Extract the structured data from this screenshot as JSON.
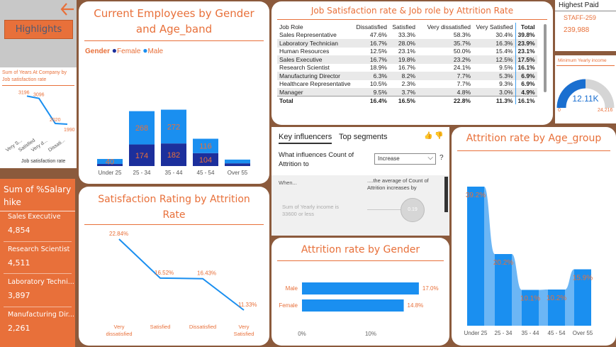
{
  "nav": {
    "back_icon": "arrow-left-icon",
    "highlights_label": "Highlights"
  },
  "years_chart": {
    "title": "Sum of Years At Company by Job satisfaction rate",
    "xlabel": "Job satisfaction rate",
    "categories": [
      "Very S...",
      "Satisfied",
      "Very d...",
      "Dissati..."
    ],
    "values": [
      3196,
      3096,
      2020,
      1990
    ]
  },
  "highest_paid": {
    "title": "Highest Paid",
    "staff": "STAFF-259",
    "amount": "239,988"
  },
  "min_income": {
    "title": "Minimum Yearly income",
    "value": "12.11K",
    "min": "0",
    "max": "24,216",
    "fraction": 0.5
  },
  "employees_chart": {
    "title": "Current Employees by Gender and Age_band",
    "legend_title": "Gender",
    "legend": [
      "Female",
      "Male"
    ],
    "colors": {
      "female": "#1c2f9c",
      "male": "#1a8ff0"
    },
    "categories": [
      "Under 25",
      "25 - 34",
      "35 - 44",
      "45 - 54",
      "Over 55"
    ],
    "series": [
      {
        "name": "Female",
        "values": [
          17,
          174,
          182,
          104,
          22
        ]
      },
      {
        "name": "Male",
        "values": [
          40,
          268,
          272,
          116,
          30
        ]
      }
    ],
    "labels": [
      {
        "male": "40",
        "female": ""
      },
      {
        "male": "268",
        "female": "174"
      },
      {
        "male": "272",
        "female": "182"
      },
      {
        "male": "116",
        "female": "104"
      },
      {
        "male": "",
        "female": ""
      }
    ]
  },
  "job_table": {
    "title": "Job Satisfaction rate & Job role by Attrition Rate",
    "headers": [
      "Job Role",
      "Dissatisfied",
      "Satisfied",
      "Very dissatisfied",
      "Very Satisfied",
      "Total"
    ],
    "rows": [
      [
        "Sales Representative",
        "47.6%",
        "33.3%",
        "58.3%",
        "30.4%",
        "39.8%"
      ],
      [
        "Laboratory Technician",
        "16.7%",
        "28.0%",
        "35.7%",
        "16.3%",
        "23.9%"
      ],
      [
        "Human Resources",
        "12.5%",
        "23.1%",
        "50.0%",
        "15.4%",
        "23.1%"
      ],
      [
        "Sales Executive",
        "16.7%",
        "19.8%",
        "23.2%",
        "12.5%",
        "17.5%"
      ],
      [
        "Research Scientist",
        "18.9%",
        "16.7%",
        "24.1%",
        "9.5%",
        "16.1%"
      ],
      [
        "Manufacturing Director",
        "6.3%",
        "8.2%",
        "7.7%",
        "5.3%",
        "6.9%"
      ],
      [
        "Healthcare Representative",
        "10.5%",
        "2.3%",
        "7.7%",
        "9.3%",
        "6.9%"
      ],
      [
        "Manager",
        "9.5%",
        "3.7%",
        "4.8%",
        "3.0%",
        "4.9%"
      ]
    ],
    "total": [
      "Total",
      "16.4%",
      "16.5%",
      "22.8%",
      "11.3%",
      "16.1%"
    ]
  },
  "influencers": {
    "tab_active": "Key influencers",
    "tab_other": "Top segments",
    "question": "What influences Count of Attrition to",
    "dropdown_value": "Increase",
    "help": "?",
    "when_label": "When...",
    "avg_label": "....the average of Count of Attrition increases by",
    "factor": "Sum of Yearly income is 33600 or less",
    "bubble": "0.19"
  },
  "salary_hike": {
    "title": "Sum of %Salary hike",
    "items": [
      {
        "label": "Sales Executive",
        "value": "4,854"
      },
      {
        "label": "Research Scientist",
        "value": "4,511"
      },
      {
        "label": "Laboratory Techni...",
        "value": "3,897"
      },
      {
        "label": "Manufacturing Dir...",
        "value": "2,261"
      }
    ]
  },
  "satisfaction_chart": {
    "title": "Satisfaction Rating by Attrition Rate",
    "categories": [
      "Very dissatisfied",
      "Satisfied",
      "Dissatisfied",
      "Very Satisfied"
    ],
    "values": [
      22.84,
      16.52,
      16.43,
      11.33
    ],
    "labels": [
      "22.84%",
      "16.52%",
      "16.43%",
      "11.33%"
    ]
  },
  "gender_chart": {
    "title": "Attrition rate by Gender",
    "categories": [
      "Male",
      "Female"
    ],
    "values": [
      17.0,
      14.8
    ],
    "labels": [
      "17.0%",
      "14.8%"
    ],
    "ticks": [
      "0%",
      "10%"
    ]
  },
  "age_chart": {
    "title": "Attrition rate by Age_group",
    "categories": [
      "Under 25",
      "25 - 34",
      "35 - 44",
      "45 - 54",
      "Over 55"
    ],
    "values": [
      39.2,
      20.2,
      10.1,
      10.2,
      15.9
    ],
    "labels": [
      "39.2%",
      "20.2%",
      "10.1%",
      "10.2%",
      "15.9%"
    ]
  }
}
